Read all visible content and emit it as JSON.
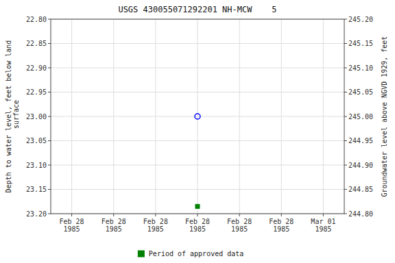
{
  "chart_data": {
    "type": "scatter",
    "title": "USGS 430055071292201 NH-MCW    5",
    "categories": [
      "Feb 28\n1985",
      "Feb 28\n1985",
      "Feb 28\n1985",
      "Feb 28\n1985",
      "Feb 28\n1985",
      "Feb 28\n1985",
      "Mar 01\n1985"
    ],
    "y_label": "Depth to water level, feet below land\n surface",
    "y2_label": "Groundwater level above NGVD 1929, feet",
    "ylim": [
      23.2,
      22.8
    ],
    "yticks": [
      {
        "value": 22.8,
        "label": "22.80"
      },
      22.85,
      {
        "value": 22.9,
        "label": "22.90"
      },
      22.95,
      {
        "value": 23.0,
        "label": "23.00"
      },
      23.05,
      {
        "value": 23.1,
        "label": "23.10"
      },
      23.15,
      {
        "value": 23.2,
        "label": "23.20"
      }
    ],
    "y2lim": [
      244.8,
      245.2
    ],
    "y2ticks": [
      {
        "value": 244.8,
        "label": "244.80"
      },
      244.85,
      {
        "value": 244.9,
        "label": "244.90"
      },
      244.95,
      {
        "value": 245.0,
        "label": "245.00"
      },
      245.05,
      {
        "value": 245.1,
        "label": "245.10"
      },
      245.15,
      {
        "value": 245.2,
        "label": "245.20"
      }
    ],
    "grid": true,
    "legend": "bottom",
    "series": [
      {
        "color": "#0000ff",
        "marker": "open-circle",
        "values": [
          null,
          null,
          null,
          23.0,
          null,
          null,
          null
        ]
      },
      {
        "name": "Period of approved data",
        "color": "#008000",
        "marker": "square",
        "values": [
          null,
          null,
          null,
          23.185,
          null,
          null,
          null
        ]
      }
    ]
  }
}
